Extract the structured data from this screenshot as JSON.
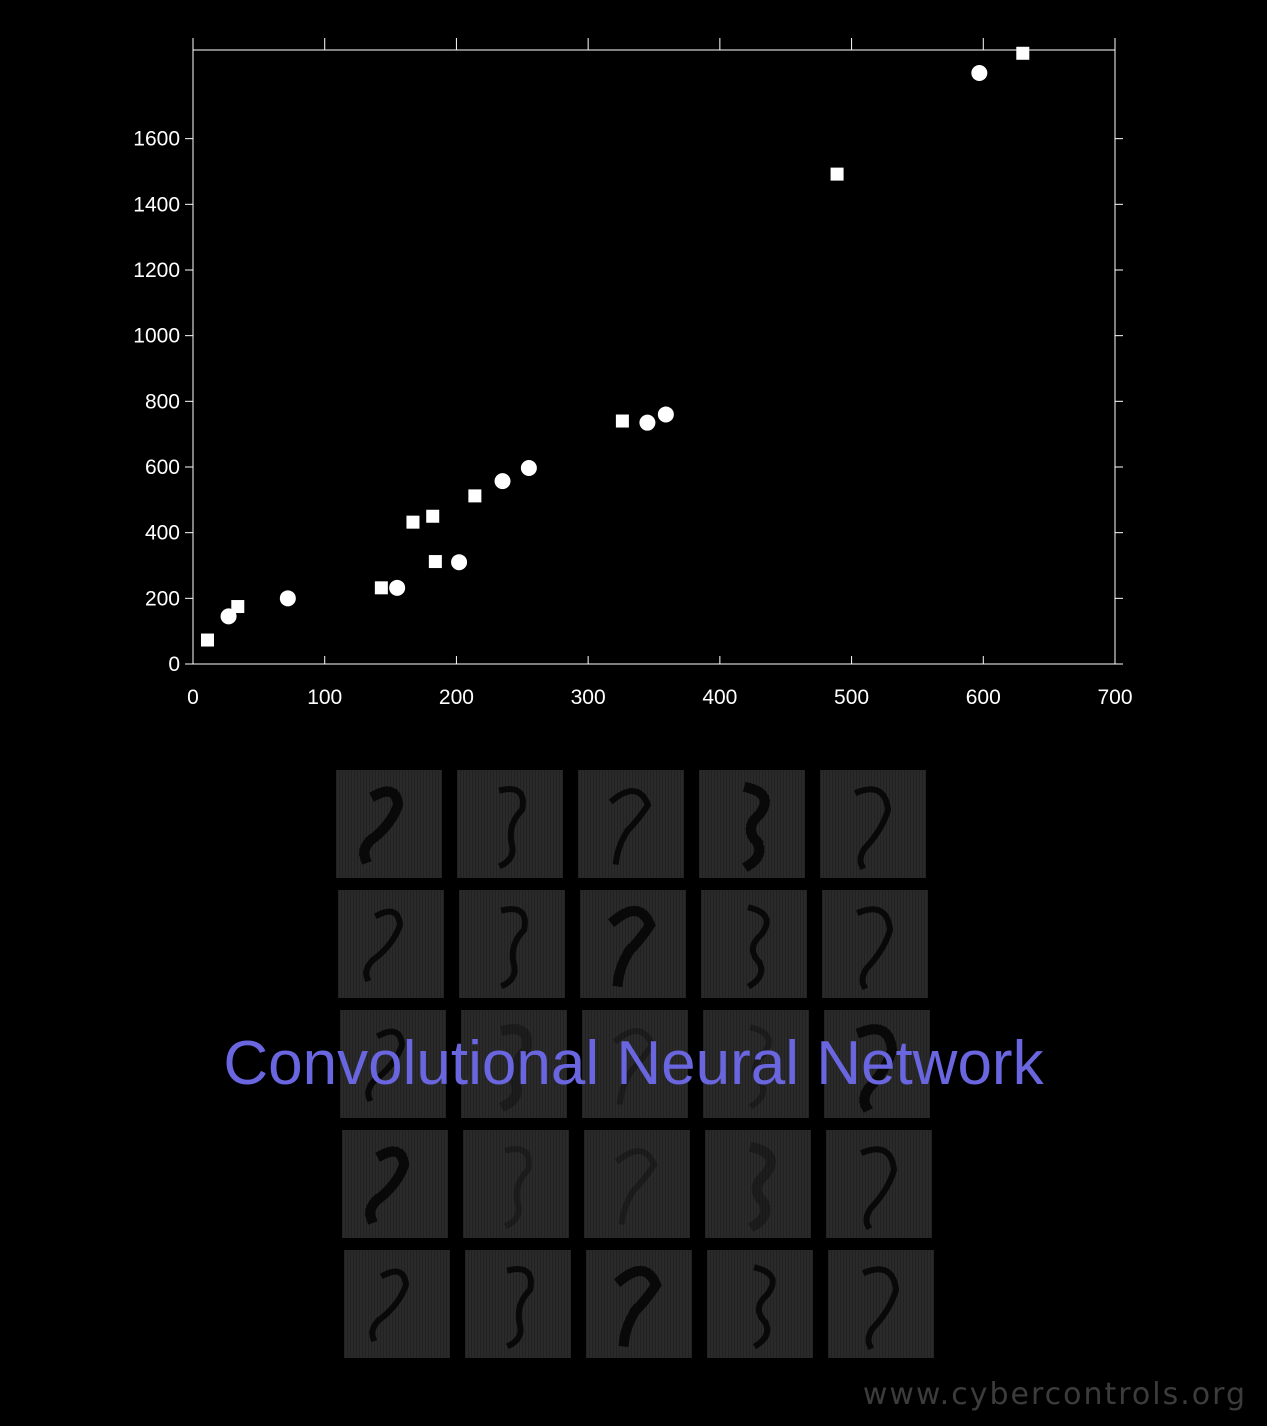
{
  "chart_data": {
    "type": "scatter",
    "xlim": [
      0,
      700
    ],
    "ylim": [
      0,
      1870
    ],
    "x_ticks": [
      0,
      100,
      200,
      300,
      400,
      500,
      600,
      700
    ],
    "y_ticks": [
      0,
      200,
      400,
      600,
      800,
      1000,
      1200,
      1400,
      1600
    ],
    "grid": false,
    "series": [
      {
        "marker": "circle",
        "color": "#ffffff",
        "points": [
          [
            27,
            145
          ],
          [
            72,
            200
          ],
          [
            155,
            232
          ],
          [
            202,
            310
          ],
          [
            235,
            557
          ],
          [
            255,
            597
          ],
          [
            345,
            735
          ],
          [
            359,
            760
          ],
          [
            597,
            1800
          ]
        ]
      },
      {
        "marker": "square",
        "color": "#ffffff",
        "points": [
          [
            11,
            73
          ],
          [
            34,
            175
          ],
          [
            143,
            232
          ],
          [
            167,
            432
          ],
          [
            182,
            450
          ],
          [
            184,
            312
          ],
          [
            214,
            512
          ],
          [
            326,
            740
          ],
          [
            489,
            1492
          ],
          [
            630,
            1860
          ]
        ]
      }
    ]
  },
  "overlay": {
    "title": "Convolutional Neural Network",
    "title_color": "#6a66e0",
    "watermark": "www.cybercontrols.org"
  },
  "feature_maps": {
    "rows": 5,
    "cols": 5,
    "icon": "digit-feature-map-image"
  }
}
